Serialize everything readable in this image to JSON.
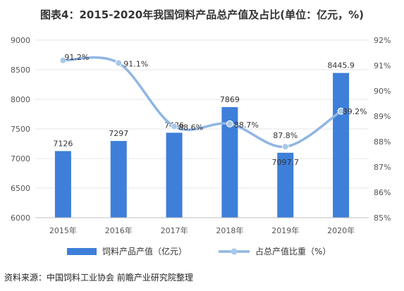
{
  "title": "图表4：2015-2020年我国饲料产品总产值及占比(单位：亿元，%)",
  "source": "资料来源：中国饲料工业协会 前瞻产业研究院整理",
  "colors": {
    "bar": "#3e7fd9",
    "line": "#8fb6e3",
    "marker": "#a9c8ea",
    "grid": "#e4e4e4"
  },
  "chart_data": {
    "type": "bar",
    "categories": [
      "2015年",
      "2016年",
      "2017年",
      "2018年",
      "2019年",
      "2020年"
    ],
    "series": [
      {
        "name": "饲料产品产值（亿元）",
        "type": "bar",
        "axis": "left",
        "values": [
          7126,
          7297,
          7436,
          7869,
          7097.7,
          8445.9
        ],
        "labels": [
          "7126",
          "7297",
          "7436",
          "7869",
          "7097.7",
          "8445.9"
        ]
      },
      {
        "name": "占总产值比重（%）",
        "type": "line",
        "axis": "right",
        "values": [
          91.2,
          91.1,
          88.6,
          88.7,
          87.8,
          89.2
        ],
        "labels": [
          "91.2%",
          "91.1%",
          "88.6%",
          "88.7%",
          "87.8%",
          "89.2%"
        ]
      }
    ],
    "y_left": {
      "min": 6000,
      "max": 9000,
      "ticks": [
        "6000",
        "6500",
        "7000",
        "7500",
        "8000",
        "8500",
        "9000"
      ]
    },
    "y_right": {
      "min": 85,
      "max": 92,
      "ticks": [
        "85%",
        "86%",
        "87%",
        "88%",
        "89%",
        "90%",
        "91%",
        "92%"
      ]
    },
    "grid": true,
    "legend_position": "bottom"
  }
}
